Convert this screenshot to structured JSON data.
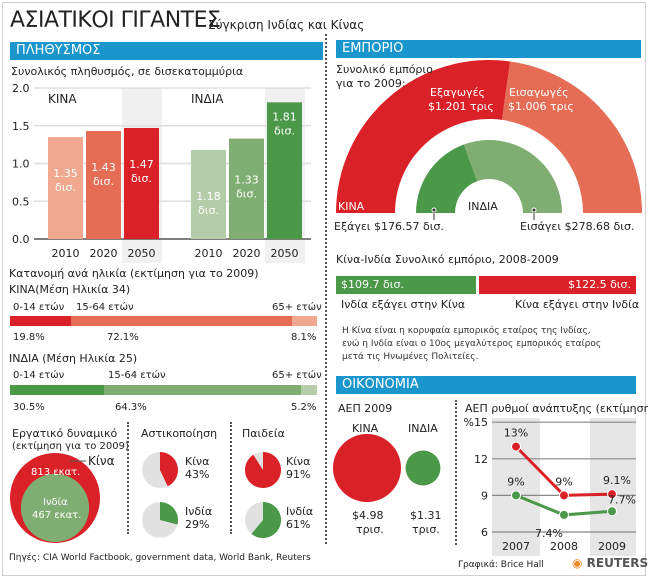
{
  "title": "ΑΣΙΑΤΙΚΟΙ ΓΙΓΑΝΤΕΣ",
  "subtitle": "Σύγκριση Ινδίας και Κίνας",
  "colors": {
    "header": "#1a96cc",
    "china_dark": "#da2128",
    "china_mid": "#e56c55",
    "china_light": "#f0a88f",
    "india_dark": "#4a9848",
    "india_mid": "#80ad72",
    "india_light": "#b5cca9",
    "pie_gray": "#e1e1e1"
  },
  "population": {
    "header": "ΠΛΗΘΥΣΜΟΣ",
    "caption": "Συνολικός πληθυσμός, σε δισεκατομμύρια",
    "chart_data": {
      "type": "bar",
      "ylim": [
        0,
        2
      ],
      "yticks": [
        "0.0",
        "0.5",
        "1.0",
        "1.5",
        "2.0"
      ],
      "grid": true,
      "groups": [
        {
          "name": "ΚΙΝΑ",
          "categories": [
            "2010",
            "2020",
            "2050"
          ],
          "values": [
            1.35,
            1.43,
            1.47
          ],
          "labels": [
            "1.35",
            "1.43",
            "1.47"
          ]
        },
        {
          "name": "ΙΝΔΙΑ",
          "categories": [
            "2010",
            "2020",
            "2050"
          ],
          "values": [
            1.18,
            1.33,
            1.81
          ],
          "labels": [
            "1.18",
            "1.33",
            "1.81"
          ]
        }
      ],
      "unit_label": "δισ."
    }
  },
  "age": {
    "caption": "Κατανομή ανά ηλικία (εκτίμηση για το 2009)",
    "china": {
      "title": "ΚΙΝΑ(Μέση Ηλικία 34)",
      "groups": [
        "0-14 ετών",
        "15-64 ετών",
        "65+ ετών"
      ],
      "values": [
        19.8,
        72.1,
        8.1
      ],
      "labels": [
        "19.8%",
        "72.1%",
        "8.1%"
      ]
    },
    "india": {
      "title": "ΙΝΔΙΑ (Μέση Ηλικία 25)",
      "groups": [
        "0-14 ετών",
        "15-64 ετών",
        "65+ ετών"
      ],
      "values": [
        30.5,
        64.3,
        5.2
      ],
      "labels": [
        "30.5%",
        "64.3%",
        "5.2%"
      ]
    }
  },
  "labor": {
    "title": "Εργατικό δυναμικό",
    "sub": "(εκτίμηση για το 2009)",
    "china_label": "Κίνα",
    "china_value": "813 εκατ.",
    "india_label": "Ινδία",
    "india_value": "467 εκατ.",
    "china": 813,
    "india": 467
  },
  "urban": {
    "title": "Αστικοποίηση",
    "china_label": "Κίνα",
    "china_value": "43%",
    "india_label": "Ινδία",
    "india_value": "29%",
    "china": 43,
    "india": 29
  },
  "education": {
    "title": "Παιδεία",
    "china_label": "Κίνα",
    "china_value": "91%",
    "india_label": "Ινδία",
    "india_value": "61%",
    "china": 91,
    "india": 61
  },
  "sources": "Πηγές: CIA World Factbook, government data, World Bank, Reuters",
  "trade": {
    "header": "ΕΜΠΟΡΙΟ",
    "caption1": "Συνολικό εμπόριο",
    "caption2": "για το 2009:",
    "china_exports_label": "Εξαγωγές",
    "china_exports_value": "$1.201 τρις",
    "china_imports_label": "Εισαγωγές",
    "china_imports_value": "$1.006 τρις",
    "china_exports": 1.201,
    "china_imports": 1.006,
    "china_label": "ΚΙΝΑ",
    "india_label": "ΙΝΔΙΑ",
    "india_exports": 176.57,
    "india_imports": 278.68,
    "india_exports_label": "Εξάγει $176.57 δισ.",
    "india_imports_label": "Εισάγει $278.68 δισ.",
    "bilateral_title": "Κίνα-Ινδία Συνολικό εμπόριο, 2008-2009",
    "india_to_china_value": "$109.7 δισ.",
    "china_to_india_value": "$122.5 δισ.",
    "india_to_china": 109.7,
    "china_to_india": 122.5,
    "india_to_china_label": "Ινδία εξάγει στην Κίνα",
    "china_to_india_label": "Κίνα εξάγει στην Ινδία",
    "note": [
      "Η Κίνα είναι η κορυφαία εμπορικός εταίρος της Ινδίας,",
      "ενώ η Ινδία είναι ο 10ος μεγαλύτερος εμπορικός εταίρος",
      "μετά τις Ηνωμένες Πολιτείες."
    ]
  },
  "economy": {
    "header": "ΟΙΚΟΝΟΜΙΑ",
    "gdp_title": "ΑΕΠ 2009",
    "china_label": "ΚΙΝΑ",
    "india_label": "ΙΝΔΙΑ",
    "china_gdp": 4.98,
    "india_gdp": 1.31,
    "china_value": "$4.98",
    "india_value": "$1.31",
    "unit": "τρισ.",
    "chart_data": {
      "type": "line",
      "title": "ΑΕΠ ρυθμοί ανάπτυξης (εκτίμηση)",
      "ylabel_prefix": "%",
      "ylim": [
        6,
        15
      ],
      "yticks": [
        "6",
        "9",
        "12",
        "15"
      ],
      "categories": [
        "2007",
        "2008",
        "2009"
      ],
      "series": [
        {
          "values": [
            13,
            9,
            9.1
          ],
          "labels": [
            "13%",
            "9%",
            "9.1%"
          ],
          "color": "#da2128"
        },
        {
          "values": [
            9,
            7.4,
            7.7
          ],
          "labels": [
            "9%",
            "7.4%",
            "7.7%"
          ],
          "color": "#4a9848"
        }
      ]
    }
  },
  "credit": "Γραφικά: Brice Hall",
  "logo": "REUTERS"
}
